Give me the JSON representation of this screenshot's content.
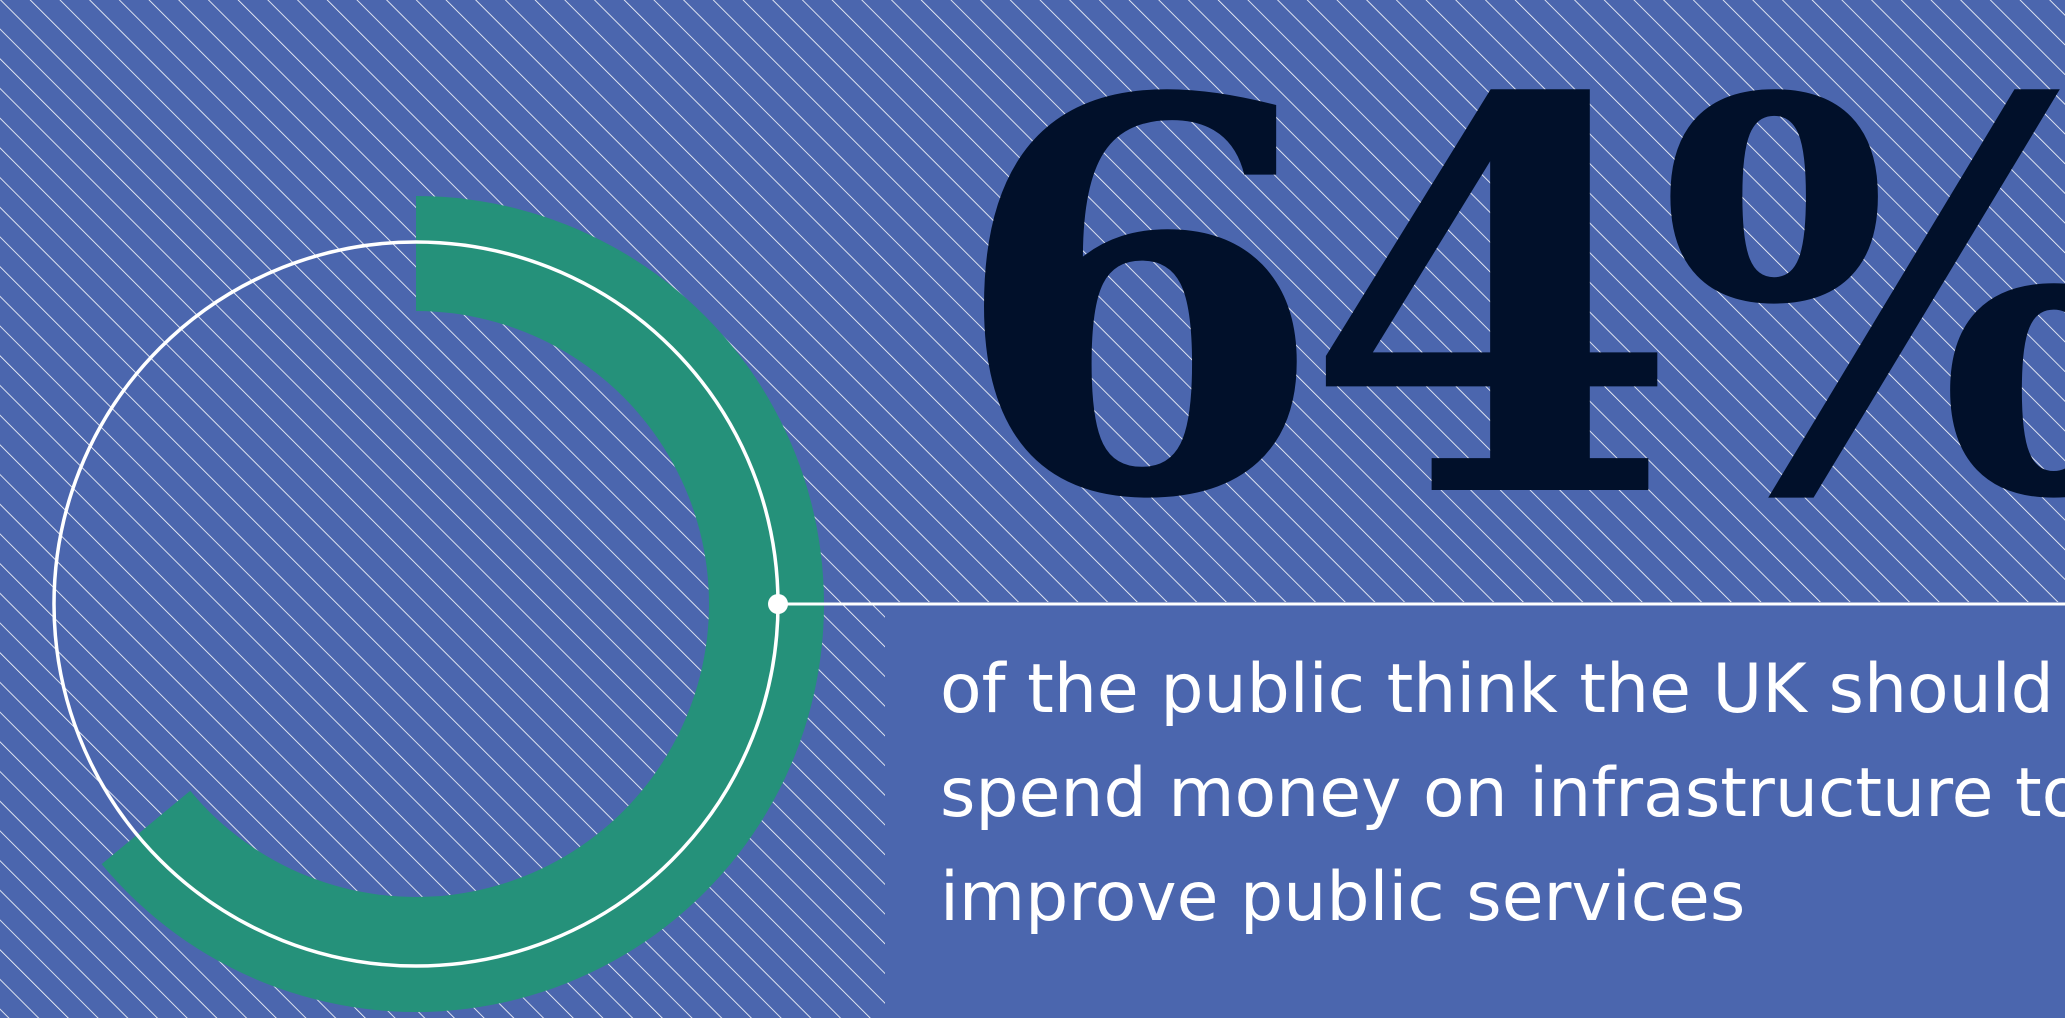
{
  "chart_data": {
    "type": "pie",
    "style": "donut-gauge",
    "value_percent": 64,
    "value_label": "64%",
    "caption_lines": [
      "of the public think the UK should",
      "spend money on infrastructure to",
      "improve public services"
    ]
  },
  "colors": {
    "background": "#4b66ae",
    "hatch_lines": "#ffffff",
    "arc_fill": "#25917a",
    "number_text": "#01102a",
    "caption_text": "#ffffff",
    "guide_line": "#ffffff"
  }
}
